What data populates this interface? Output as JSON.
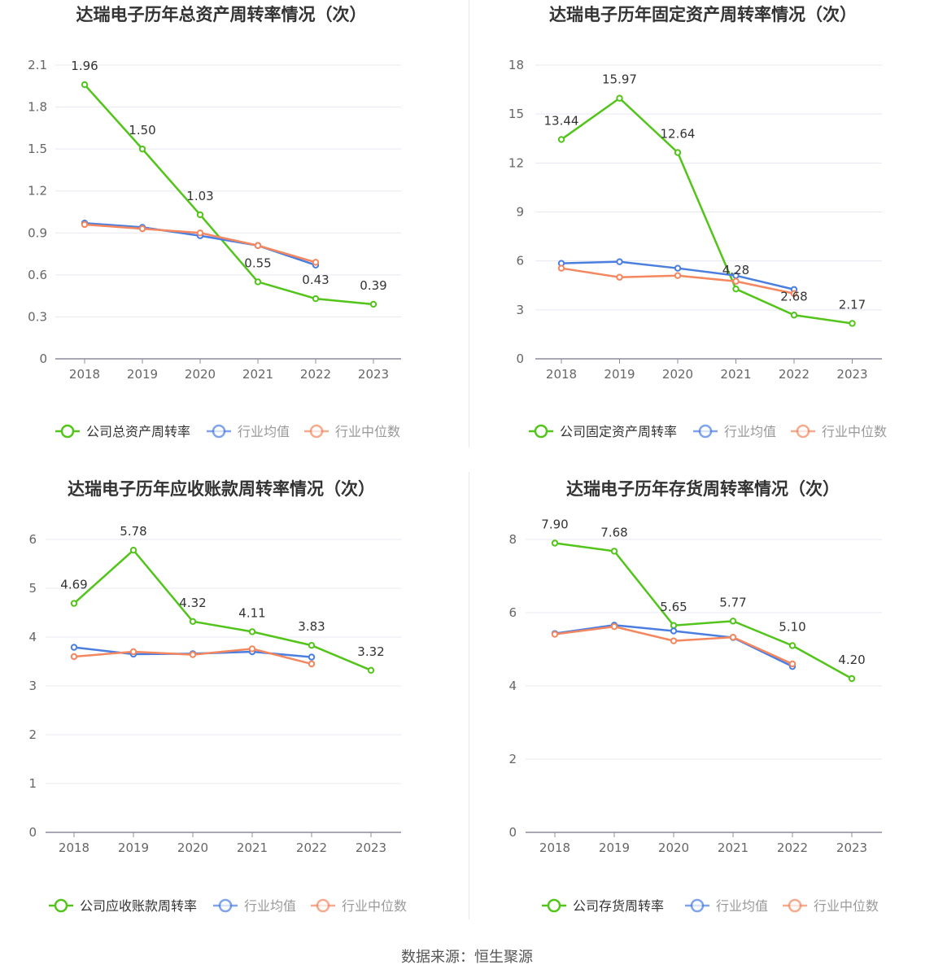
{
  "source_label": "数据来源：恒生聚源",
  "colors": {
    "company": "#52c41a",
    "avg": "#4a7ee0",
    "median": "#f4875f"
  },
  "chart_data": [
    {
      "type": "line",
      "title": "达瑞电子历年总资产周转率情况（次）",
      "categories": [
        "2018",
        "2019",
        "2020",
        "2021",
        "2022",
        "2023"
      ],
      "yticks": [
        "0",
        "0.3",
        "0.6",
        "0.9",
        "1.2",
        "1.5",
        "1.8",
        "2.1"
      ],
      "ylim": [
        0,
        2.1
      ],
      "series": [
        {
          "name": "公司总资产周转率",
          "values": [
            1.96,
            1.5,
            1.03,
            0.55,
            0.43,
            0.39
          ],
          "labels": [
            "1.96",
            "1.50",
            "1.03",
            "0.55",
            "0.43",
            "0.39"
          ]
        },
        {
          "name": "行业均值",
          "values": [
            0.97,
            0.94,
            0.88,
            0.81,
            0.67,
            null
          ]
        },
        {
          "name": "行业中位数",
          "values": [
            0.96,
            0.93,
            0.9,
            0.81,
            0.69,
            null
          ]
        }
      ]
    },
    {
      "type": "line",
      "title": "达瑞电子历年固定资产周转率情况（次）",
      "categories": [
        "2018",
        "2019",
        "2020",
        "2021",
        "2022",
        "2023"
      ],
      "yticks": [
        "0",
        "3",
        "6",
        "9",
        "12",
        "15",
        "18"
      ],
      "ylim": [
        0,
        18
      ],
      "series": [
        {
          "name": "公司固定资产周转率",
          "values": [
            13.44,
            15.97,
            12.64,
            4.28,
            2.68,
            2.17
          ],
          "labels": [
            "13.44",
            "15.97",
            "12.64",
            "4.28",
            "2.68",
            "2.17"
          ]
        },
        {
          "name": "行业均值",
          "values": [
            5.85,
            5.95,
            5.55,
            5.1,
            4.25,
            null
          ]
        },
        {
          "name": "行业中位数",
          "values": [
            5.55,
            5.0,
            5.1,
            4.75,
            4.0,
            null
          ]
        }
      ]
    },
    {
      "type": "line",
      "title": "达瑞电子历年应收账款周转率情况（次）",
      "categories": [
        "2018",
        "2019",
        "2020",
        "2021",
        "2022",
        "2023"
      ],
      "yticks": [
        "0",
        "1",
        "2",
        "3",
        "4",
        "5",
        "6"
      ],
      "ylim": [
        0,
        6
      ],
      "series": [
        {
          "name": "公司应收账款周转率",
          "values": [
            4.69,
            5.78,
            4.32,
            4.11,
            3.83,
            3.32
          ],
          "labels": [
            "4.69",
            "5.78",
            "4.32",
            "4.11",
            "3.83",
            "3.32"
          ]
        },
        {
          "name": "行业均值",
          "values": [
            3.79,
            3.65,
            3.66,
            3.7,
            3.59,
            null
          ]
        },
        {
          "name": "行业中位数",
          "values": [
            3.6,
            3.7,
            3.64,
            3.76,
            3.45,
            null
          ]
        }
      ]
    },
    {
      "type": "line",
      "title": "达瑞电子历年存货周转率情况（次）",
      "categories": [
        "2018",
        "2019",
        "2020",
        "2021",
        "2022",
        "2023"
      ],
      "yticks": [
        "0",
        "2",
        "4",
        "6",
        "8"
      ],
      "ylim": [
        0,
        8
      ],
      "series": [
        {
          "name": "公司存货周转率",
          "values": [
            7.9,
            7.68,
            5.65,
            5.77,
            5.1,
            4.2
          ],
          "labels": [
            "7.90",
            "7.68",
            "5.65",
            "5.77",
            "5.10",
            "4.20"
          ]
        },
        {
          "name": "行业均值",
          "values": [
            5.43,
            5.66,
            5.5,
            5.32,
            4.53,
            null
          ]
        },
        {
          "name": "行业中位数",
          "values": [
            5.41,
            5.62,
            5.23,
            5.33,
            4.6,
            null
          ]
        }
      ]
    }
  ]
}
